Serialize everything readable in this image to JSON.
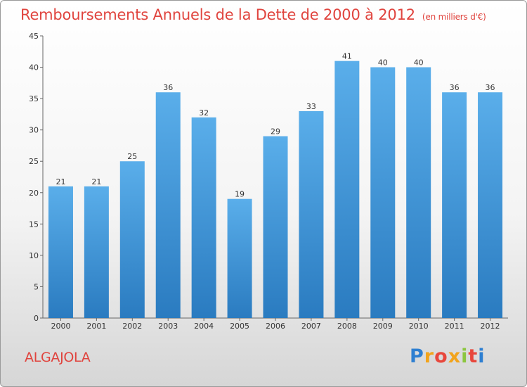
{
  "title": "Remboursements Annuels de la Dette de 2000 à 2012",
  "subtitle": "(en milliers d'€)",
  "commune": "ALGAJOLA",
  "logo": {
    "letters": [
      "P",
      "r",
      "o",
      "x",
      "i",
      "t",
      "i"
    ],
    "colors": [
      "#2e7fd1",
      "#f2a41c",
      "#e8473c",
      "#f2a41c",
      "#8cc63f",
      "#e8473c",
      "#2e7fd1"
    ]
  },
  "colors": {
    "bar_top": "#5aaeea",
    "bar_bottom": "#2a7bc0",
    "title": "#e0443e"
  },
  "chart_data": {
    "type": "bar",
    "categories": [
      "2000",
      "2001",
      "2002",
      "2003",
      "2004",
      "2005",
      "2006",
      "2007",
      "2008",
      "2009",
      "2010",
      "2011",
      "2012"
    ],
    "values": [
      21,
      21,
      25,
      36,
      32,
      19,
      29,
      33,
      41,
      40,
      40,
      36,
      36
    ],
    "ylim": [
      0,
      45
    ],
    "yticks": [
      0,
      5,
      10,
      15,
      20,
      25,
      30,
      35,
      40,
      45
    ],
    "grid": false,
    "data_labels": true
  }
}
